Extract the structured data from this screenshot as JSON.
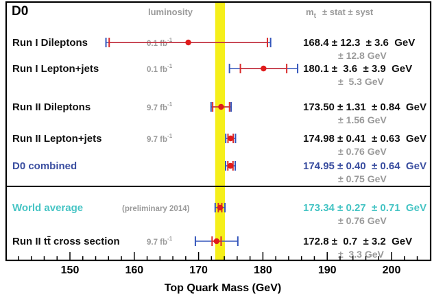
{
  "chart_data": {
    "type": "scatter",
    "title": "D0",
    "xlabel": "Top Quark Mass (GeV)",
    "xlim": [
      140,
      204
    ],
    "xticks": [
      150,
      160,
      170,
      180,
      190,
      200
    ],
    "headers": {
      "luminosity": "luminosity",
      "mass_symbol": "m",
      "mass_subscript": "t",
      "uncertainty": "± stat ± syst"
    },
    "band": {
      "center": 173.34,
      "halfwidth": 0.76,
      "color": "#f5ef1a"
    },
    "colors": {
      "stat_bar": "#d92b2b",
      "total_bar": "#3355bb",
      "point": "#e01b1b",
      "label_default": "#111111",
      "label_combined": "#3a4ea0",
      "label_world": "#45c4c4",
      "total_text": "#9a9a9a"
    },
    "measurements": [
      {
        "label": "Run I Dileptons",
        "luminosity": "0.1 fb",
        "lumi_exp": "-1",
        "value": 168.4,
        "stat_lo": 12.3,
        "stat_hi": 12.3,
        "total_lo": 12.8,
        "total_hi": 12.8,
        "value_text": "168.4",
        "stat_text": "± 12.3",
        "syst_text": "± 3.6",
        "unit": "GeV",
        "total_text": "± 12.8 GeV",
        "group": "default"
      },
      {
        "label": "Run I Lepton+jets",
        "luminosity": "0.1 fb",
        "lumi_exp": "-1",
        "value": 180.1,
        "stat_lo": 3.6,
        "stat_hi": 3.6,
        "total_lo": 5.3,
        "total_hi": 5.3,
        "value_text": "180.1",
        "stat_text": "±  3.6",
        "syst_text": "± 3.9",
        "unit": "GeV",
        "total_text": "±  5.3 GeV",
        "group": "default"
      },
      {
        "label": "Run II Dileptons",
        "luminosity": "9.7 fb",
        "lumi_exp": "-1",
        "value": 173.5,
        "stat_lo": 1.31,
        "stat_hi": 1.31,
        "total_lo": 1.56,
        "total_hi": 1.56,
        "value_text": "173.50",
        "stat_text": "± 1.31",
        "syst_text": "± 0.84",
        "unit": "GeV",
        "total_text": "± 1.56 GeV",
        "group": "default"
      },
      {
        "label": "Run II Lepton+jets",
        "luminosity": "9.7 fb",
        "lumi_exp": "-1",
        "value": 174.98,
        "stat_lo": 0.41,
        "stat_hi": 0.41,
        "total_lo": 0.76,
        "total_hi": 0.76,
        "value_text": "174.98",
        "stat_text": "± 0.41",
        "syst_text": "± 0.63",
        "unit": "GeV",
        "total_text": "± 0.76 GeV",
        "group": "default"
      },
      {
        "label": "D0 combined",
        "luminosity": "",
        "lumi_exp": "",
        "value": 174.95,
        "stat_lo": 0.4,
        "stat_hi": 0.4,
        "total_lo": 0.75,
        "total_hi": 0.75,
        "value_text": "174.95",
        "stat_text": "± 0.40",
        "syst_text": "± 0.64",
        "unit": "GeV",
        "total_text": "± 0.75 GeV",
        "group": "combined"
      },
      {
        "label": "World average",
        "luminosity": "(preliminary 2014)",
        "lumi_exp": "",
        "value": 173.34,
        "stat_lo": 0.27,
        "stat_hi": 0.27,
        "total_lo": 0.76,
        "total_hi": 0.76,
        "value_text": "173.34",
        "stat_text": "± 0.27",
        "syst_text": "± 0.71",
        "unit": "GeV",
        "total_text": "± 0.76 GeV",
        "group": "world"
      },
      {
        "label": "Run II tt̄ cross section",
        "luminosity": "9.7 fb",
        "lumi_exp": "-1",
        "value": 172.8,
        "stat_lo": 0.7,
        "stat_hi": 0.7,
        "total_lo": 3.3,
        "total_hi": 3.3,
        "value_text": "172.8",
        "stat_text": "±  0.7",
        "syst_text": "± 3.2",
        "unit": "GeV",
        "total_text": "±  3.3 GeV",
        "group": "default"
      }
    ]
  }
}
